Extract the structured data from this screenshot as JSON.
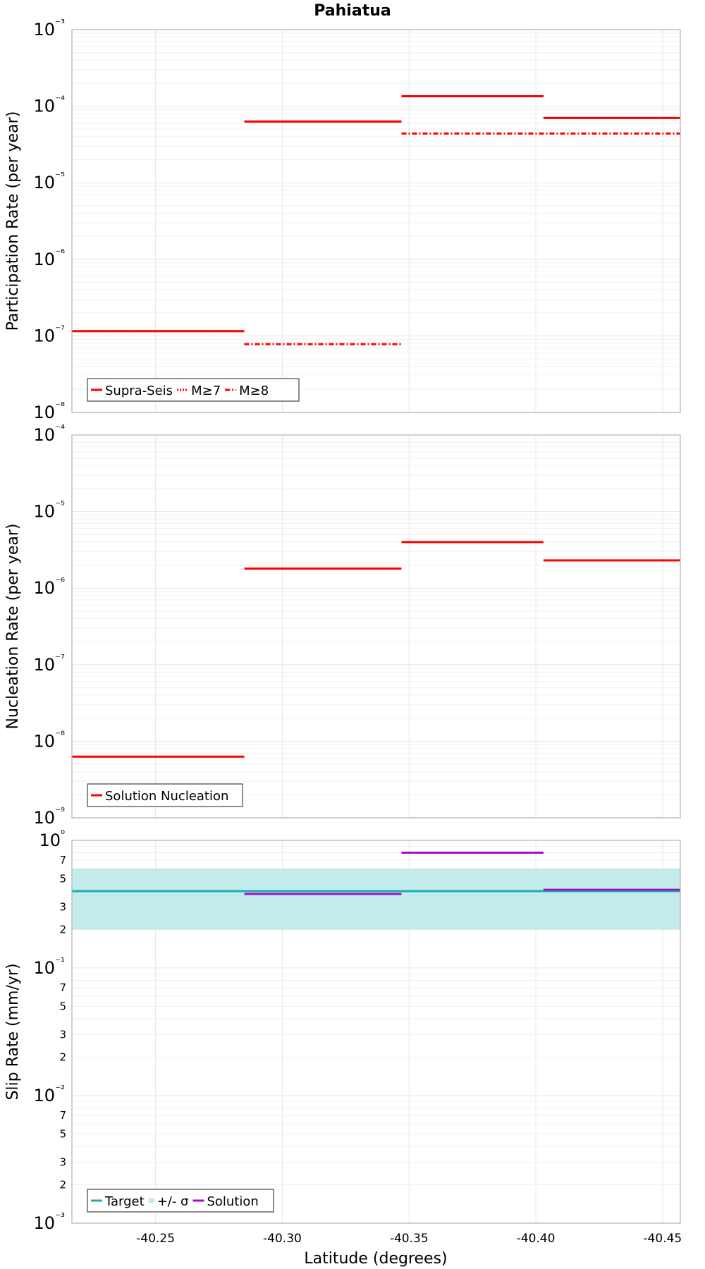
{
  "figure": {
    "title": "Pahiatua",
    "xlabel": "Latitude (degrees)"
  },
  "chart_data": [
    {
      "type": "line",
      "ylabel": "Participation Rate (per year)",
      "xlim": [
        -40.217,
        -40.457
      ],
      "xticks": [
        -40.25,
        -40.3,
        -40.35,
        -40.4,
        -40.45
      ],
      "yscale": "log",
      "ylim": [
        1e-08,
        0.001
      ],
      "grid": true,
      "legend_position": "bottom-left",
      "series": [
        {
          "name": "Supra-Seis",
          "color": "#ff0000",
          "style": "solid",
          "segments": [
            {
              "x": [
                -40.217,
                -40.285
              ],
              "y": 1.15e-07
            },
            {
              "x": [
                -40.285,
                -40.347
              ],
              "y": 6.3e-05
            },
            {
              "x": [
                -40.347,
                -40.403
              ],
              "y": 0.000135
            },
            {
              "x": [
                -40.403,
                -40.457
              ],
              "y": 7e-05
            }
          ]
        },
        {
          "name": "M≥7",
          "color": "#ff0000",
          "style": "dotted",
          "segments": [
            {
              "x": [
                -40.217,
                -40.285
              ],
              "y": 1.15e-07
            },
            {
              "x": [
                -40.285,
                -40.347
              ],
              "y": 6.3e-05
            },
            {
              "x": [
                -40.347,
                -40.403
              ],
              "y": 0.000135
            },
            {
              "x": [
                -40.403,
                -40.457
              ],
              "y": 7e-05
            }
          ]
        },
        {
          "name": "M≥8",
          "color": "#ff0000",
          "style": "dashdot",
          "segments": [
            {
              "x": [
                -40.285,
                -40.347
              ],
              "y": 7.8e-08
            },
            {
              "x": [
                -40.347,
                -40.457
              ],
              "y": 4.4e-05
            }
          ]
        }
      ]
    },
    {
      "type": "line",
      "ylabel": "Nucleation Rate (per year)",
      "xlim": [
        -40.217,
        -40.457
      ],
      "xticks": [
        -40.25,
        -40.3,
        -40.35,
        -40.4,
        -40.45
      ],
      "yscale": "log",
      "ylim": [
        1e-09,
        0.0001
      ],
      "grid": true,
      "legend_position": "bottom-left",
      "series": [
        {
          "name": "Solution Nucleation",
          "color": "#ff0000",
          "style": "solid",
          "segments": [
            {
              "x": [
                -40.217,
                -40.285
              ],
              "y": 6.3e-09
            },
            {
              "x": [
                -40.285,
                -40.347
              ],
              "y": 1.8e-06
            },
            {
              "x": [
                -40.347,
                -40.403
              ],
              "y": 4e-06
            },
            {
              "x": [
                -40.403,
                -40.457
              ],
              "y": 2.3e-06
            }
          ]
        }
      ]
    },
    {
      "type": "line",
      "ylabel": "Slip Rate (mm/yr)",
      "xlim": [
        -40.217,
        -40.457
      ],
      "xticks": [
        -40.25,
        -40.3,
        -40.35,
        -40.4,
        -40.45
      ],
      "yscale": "log",
      "ylim": [
        0.001,
        1
      ],
      "grid": true,
      "legend_position": "bottom-left",
      "band": {
        "name": "+/- σ",
        "color": "#bde9e9",
        "x": [
          -40.217,
          -40.457
        ],
        "y": [
          0.2,
          0.6
        ]
      },
      "series": [
        {
          "name": "Target",
          "color": "#1aafaf",
          "style": "solid",
          "segments": [
            {
              "x": [
                -40.217,
                -40.457
              ],
              "y": 0.4
            }
          ]
        },
        {
          "name": "Solution",
          "color": "#a010c0",
          "style": "solid",
          "segments": [
            {
              "x": [
                -40.285,
                -40.347
              ],
              "y": 0.38
            },
            {
              "x": [
                -40.347,
                -40.403
              ],
              "y": 0.8
            },
            {
              "x": [
                -40.403,
                -40.457
              ],
              "y": 0.41
            }
          ]
        }
      ]
    }
  ]
}
